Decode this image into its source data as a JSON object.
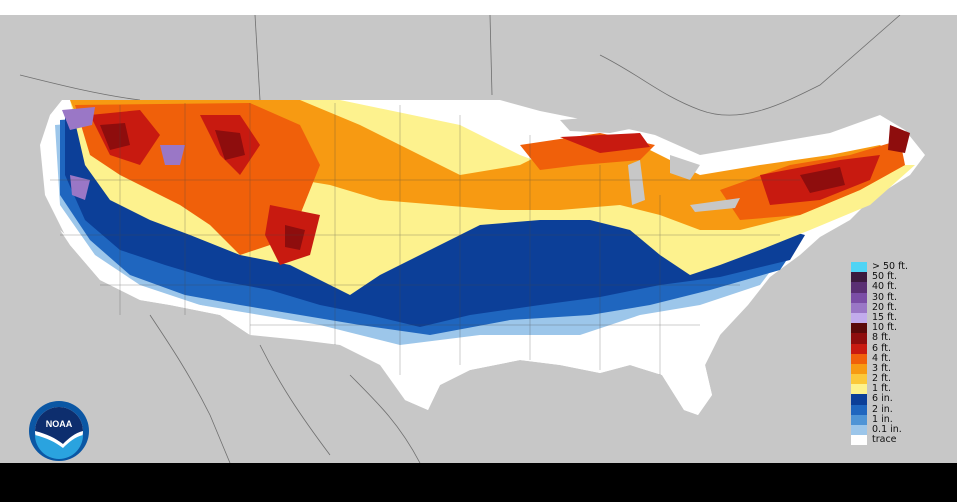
{
  "map": {
    "logo": {
      "text": "NOAA",
      "icon": "noaa-logo-icon"
    },
    "colors": {
      "ocean_land_background": "#c7c7c7",
      "bottom_bar": "#000000"
    },
    "legend": [
      {
        "label": "> 50 ft.",
        "color": "#4fd4f5"
      },
      {
        "label": "50 ft.",
        "color": "#3b1a3e"
      },
      {
        "label": "40 ft.",
        "color": "#5a2f73"
      },
      {
        "label": "30 ft.",
        "color": "#7b4ea6"
      },
      {
        "label": "20 ft.",
        "color": "#9a77c6"
      },
      {
        "label": "15 ft.",
        "color": "#c2acec"
      },
      {
        "label": "10 ft.",
        "color": "#5a0a0a"
      },
      {
        "label": "8 ft.",
        "color": "#8e0d0d"
      },
      {
        "label": "6 ft.",
        "color": "#c81a10"
      },
      {
        "label": "4 ft.",
        "color": "#f0600a"
      },
      {
        "label": "3 ft.",
        "color": "#f79a12"
      },
      {
        "label": "2 ft.",
        "color": "#fbc83a"
      },
      {
        "label": "1 ft.",
        "color": "#fdf28e"
      },
      {
        "label": "6 in.",
        "color": "#0c3f98"
      },
      {
        "label": "2 in.",
        "color": "#1f66bf"
      },
      {
        "label": "1 in.",
        "color": "#4e94d6"
      },
      {
        "label": "0.1 in.",
        "color": "#9cc6ea"
      },
      {
        "label": "trace",
        "color": "#ffffff"
      }
    ]
  }
}
